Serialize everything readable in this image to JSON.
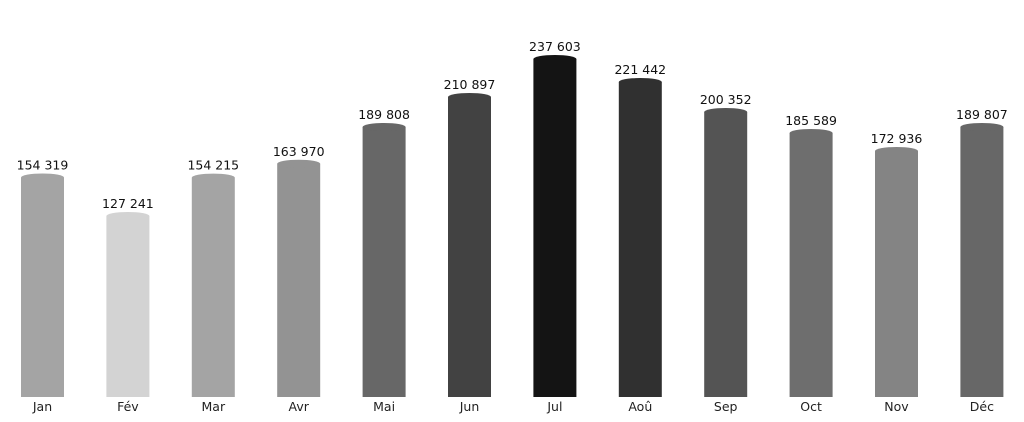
{
  "chart_data": {
    "type": "bar",
    "title": "",
    "xlabel": "",
    "ylabel": "",
    "categories": [
      "Jan",
      "Fév",
      "Mar",
      "Avr",
      "Mai",
      "Jun",
      "Jul",
      "Aoû",
      "Sep",
      "Oct",
      "Nov",
      "Déc"
    ],
    "values": [
      154319,
      127241,
      154215,
      163970,
      189808,
      210897,
      237603,
      221442,
      200352,
      185589,
      172936,
      189807
    ],
    "value_labels": [
      "154 319",
      "127 241",
      "154 215",
      "163 970",
      "189 808",
      "210 897",
      "237 603",
      "221 442",
      "200 352",
      "185 589",
      "172 936",
      "189 807"
    ],
    "ylim": [
      0,
      237603
    ],
    "grid": false,
    "legend": "none",
    "color_scale": {
      "low": "#d3d3d3",
      "high": "#141414"
    }
  }
}
